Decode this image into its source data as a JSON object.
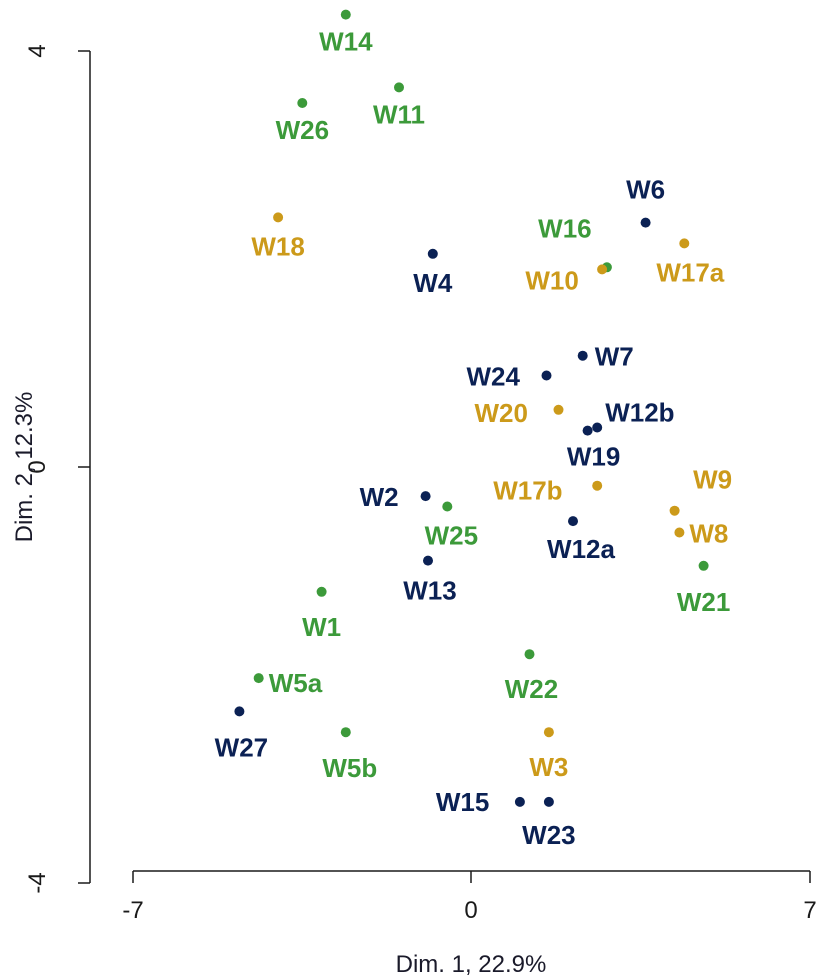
{
  "chart_data": {
    "type": "scatter",
    "title": "",
    "xlabel": "Dim. 1, 22.9%",
    "ylabel": "Dim. 2, 12.3%",
    "xlim": [
      -7,
      7
    ],
    "ylim": [
      -4,
      4
    ],
    "xticks": [
      "-7",
      "0",
      "7"
    ],
    "yticks": [
      "-4",
      "0",
      "4"
    ],
    "grid": false,
    "legend": "none",
    "colors": {
      "navy": "#0b2154",
      "green": "#3c9a3a",
      "gold": "#cc9a1a"
    },
    "points": [
      {
        "label": "W14",
        "x": -2.6,
        "y": 4.35,
        "color": "green"
      },
      {
        "label": "W11",
        "x": -1.5,
        "y": 3.65,
        "color": "green"
      },
      {
        "label": "W26",
        "x": -3.5,
        "y": 3.5,
        "color": "green"
      },
      {
        "label": "W18",
        "x": -4.0,
        "y": 2.4,
        "color": "gold"
      },
      {
        "label": "W4",
        "x": -0.8,
        "y": 2.05,
        "color": "navy"
      },
      {
        "label": "W6",
        "x": 3.6,
        "y": 2.35,
        "color": "navy"
      },
      {
        "label": "W17a",
        "x": 4.4,
        "y": 2.15,
        "color": "gold"
      },
      {
        "label": "W16",
        "x": 2.8,
        "y": 1.92,
        "color": "green"
      },
      {
        "label": "W10",
        "x": 2.7,
        "y": 1.9,
        "color": "gold"
      },
      {
        "label": "W7",
        "x": 2.3,
        "y": 1.07,
        "color": "navy"
      },
      {
        "label": "W24",
        "x": 1.55,
        "y": 0.88,
        "color": "navy"
      },
      {
        "label": "W20",
        "x": 1.8,
        "y": 0.55,
        "color": "gold"
      },
      {
        "label": "W12b",
        "x": 2.6,
        "y": 0.38,
        "color": "navy"
      },
      {
        "label": "W19",
        "x": 2.4,
        "y": 0.35,
        "color": "navy"
      },
      {
        "label": "W17b",
        "x": 2.6,
        "y": -0.18,
        "color": "gold"
      },
      {
        "label": "W9",
        "x": 4.2,
        "y": -0.42,
        "color": "gold"
      },
      {
        "label": "W8",
        "x": 4.3,
        "y": -0.63,
        "color": "gold"
      },
      {
        "label": "W12a",
        "x": 2.1,
        "y": -0.52,
        "color": "navy"
      },
      {
        "label": "W21",
        "x": 4.8,
        "y": -0.95,
        "color": "green"
      },
      {
        "label": "W2",
        "x": -0.95,
        "y": -0.28,
        "color": "navy"
      },
      {
        "label": "W25",
        "x": -0.5,
        "y": -0.38,
        "color": "green"
      },
      {
        "label": "W13",
        "x": -0.9,
        "y": -0.9,
        "color": "navy"
      },
      {
        "label": "W1",
        "x": -3.1,
        "y": -1.2,
        "color": "green"
      },
      {
        "label": "W22",
        "x": 1.2,
        "y": -1.8,
        "color": "green"
      },
      {
        "label": "W5a",
        "x": -4.4,
        "y": -2.03,
        "color": "green"
      },
      {
        "label": "W27",
        "x": -4.8,
        "y": -2.35,
        "color": "navy"
      },
      {
        "label": "W5b",
        "x": -2.6,
        "y": -2.55,
        "color": "green"
      },
      {
        "label": "W3",
        "x": 1.6,
        "y": -2.55,
        "color": "gold"
      },
      {
        "label": "W15",
        "x": 1.0,
        "y": -3.22,
        "color": "navy"
      },
      {
        "label": "W23",
        "x": 1.6,
        "y": -3.22,
        "color": "navy"
      }
    ]
  }
}
